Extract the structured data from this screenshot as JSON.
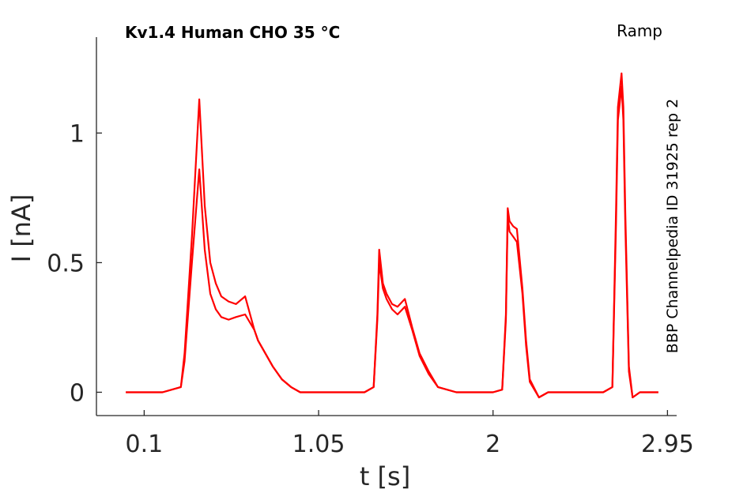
{
  "chart_data": {
    "type": "line",
    "title": "Kv1.4  Human  CHO  35 °C",
    "protocol_label": "Ramp",
    "side_label": "BBP Channelpedia ID 31925 rep 2",
    "xlabel": "t [s]",
    "ylabel": "I [nA]",
    "xlim": [
      -0.16,
      3.0
    ],
    "ylim": [
      -0.09,
      1.37
    ],
    "xticks": [
      0.1,
      1.05,
      2,
      2.95
    ],
    "xtick_labels": [
      "0.1",
      "1.05",
      "2",
      "2.95"
    ],
    "yticks": [
      0,
      0.5,
      1
    ],
    "ytick_labels": [
      "0",
      "0.5",
      "1"
    ],
    "grid": false,
    "legend": "none",
    "color": "#ff0000",
    "series": [
      {
        "x": [
          0.0,
          0.1,
          0.2,
          0.3,
          0.32,
          0.36,
          0.4,
          0.43,
          0.46,
          0.49,
          0.52,
          0.56,
          0.6,
          0.65,
          0.7,
          0.72,
          0.76,
          0.8,
          0.85,
          0.9,
          0.95,
          1.0,
          1.1,
          1.2,
          1.3,
          1.35,
          1.37,
          1.38,
          1.4,
          1.42,
          1.45,
          1.48,
          1.52,
          1.56,
          1.6,
          1.65,
          1.7,
          1.8,
          1.9,
          2.0,
          2.05,
          2.07,
          2.08,
          2.09,
          2.11,
          2.13,
          2.16,
          2.18,
          2.2,
          2.25,
          2.3,
          2.4,
          2.5,
          2.6,
          2.65,
          2.67,
          2.68,
          2.7,
          2.71,
          2.72,
          2.74,
          2.76,
          2.8,
          2.9
        ],
        "y": [
          0.0,
          0.0,
          0.0,
          0.02,
          0.15,
          0.6,
          1.13,
          0.72,
          0.5,
          0.42,
          0.37,
          0.35,
          0.34,
          0.37,
          0.24,
          0.2,
          0.15,
          0.1,
          0.05,
          0.02,
          0.0,
          0.0,
          0.0,
          0.0,
          0.0,
          0.02,
          0.3,
          0.55,
          0.42,
          0.38,
          0.34,
          0.33,
          0.36,
          0.25,
          0.15,
          0.08,
          0.02,
          0.0,
          0.0,
          0.0,
          0.01,
          0.3,
          0.71,
          0.66,
          0.64,
          0.63,
          0.4,
          0.2,
          0.05,
          -0.02,
          0.0,
          0.0,
          0.0,
          0.0,
          0.02,
          0.7,
          1.1,
          1.23,
          1.1,
          0.7,
          0.1,
          -0.02,
          0.0,
          0.0
        ]
      },
      {
        "x": [
          0.0,
          0.1,
          0.2,
          0.3,
          0.32,
          0.36,
          0.4,
          0.43,
          0.46,
          0.49,
          0.52,
          0.56,
          0.6,
          0.65,
          0.7,
          0.72,
          0.76,
          0.8,
          0.85,
          0.9,
          0.95,
          1.0,
          1.1,
          1.2,
          1.3,
          1.35,
          1.37,
          1.38,
          1.4,
          1.42,
          1.45,
          1.48,
          1.52,
          1.56,
          1.6,
          1.65,
          1.7,
          1.8,
          1.9,
          2.0,
          2.05,
          2.07,
          2.08,
          2.09,
          2.11,
          2.13,
          2.16,
          2.18,
          2.2,
          2.25,
          2.3,
          2.4,
          2.5,
          2.6,
          2.65,
          2.67,
          2.68,
          2.7,
          2.71,
          2.72,
          2.74,
          2.76,
          2.8,
          2.9
        ],
        "y": [
          0.0,
          0.0,
          0.0,
          0.02,
          0.12,
          0.5,
          0.86,
          0.55,
          0.38,
          0.32,
          0.29,
          0.28,
          0.29,
          0.3,
          0.24,
          0.2,
          0.15,
          0.1,
          0.05,
          0.02,
          0.0,
          0.0,
          0.0,
          0.0,
          0.0,
          0.02,
          0.28,
          0.5,
          0.4,
          0.36,
          0.32,
          0.3,
          0.33,
          0.24,
          0.14,
          0.07,
          0.02,
          0.0,
          0.0,
          0.0,
          0.01,
          0.28,
          0.68,
          0.62,
          0.6,
          0.58,
          0.38,
          0.18,
          0.04,
          -0.02,
          0.0,
          0.0,
          0.0,
          0.0,
          0.02,
          0.65,
          1.05,
          1.18,
          1.05,
          0.65,
          0.08,
          -0.02,
          0.0,
          0.0
        ]
      }
    ]
  }
}
